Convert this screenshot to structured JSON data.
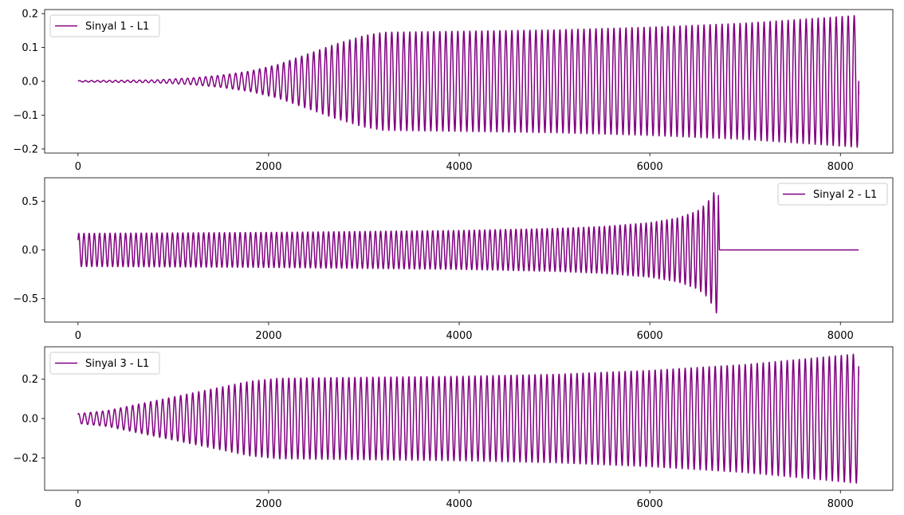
{
  "colors": {
    "line": "#800080",
    "axes": "#000000",
    "background": "#ffffff",
    "legend_border": "#cccccc"
  },
  "chart_data": [
    {
      "type": "line",
      "title": "",
      "xlabel": "",
      "ylabel": "",
      "xlim": [
        -350,
        8550
      ],
      "ylim": [
        -0.212,
        0.212
      ],
      "xticks": [
        0,
        2000,
        4000,
        6000,
        8000
      ],
      "xtick_labels": [
        "0",
        "2000",
        "4000",
        "6000",
        "8000"
      ],
      "yticks": [
        -0.2,
        -0.1,
        0.0,
        0.1,
        0.2
      ],
      "ytick_labels": [
        "−0.2",
        "−0.1",
        "0.0",
        "0.1",
        "0.2"
      ],
      "grid": false,
      "legend_position": "upper-left",
      "series": [
        {
          "name": "Sinyal 1 - L1",
          "color": "#800080",
          "signal": {
            "x_start": 0,
            "x_end": 8192,
            "cycles": 130,
            "start_value": 0.0,
            "end_value": -0.04,
            "envelope": {
              "x": [
                0,
                800,
                1200,
                1500,
                1800,
                2100,
                2400,
                2700,
                3000,
                3200,
                4000,
                5000,
                6000,
                7000,
                8192
              ],
              "y": [
                0.002,
                0.004,
                0.01,
                0.018,
                0.03,
                0.05,
                0.08,
                0.11,
                0.135,
                0.145,
                0.148,
                0.152,
                0.16,
                0.172,
                0.195
              ]
            }
          }
        }
      ]
    },
    {
      "type": "line",
      "title": "",
      "xlabel": "",
      "ylabel": "",
      "xlim": [
        -350,
        8550
      ],
      "ylim": [
        -0.74,
        0.74
      ],
      "xticks": [
        0,
        2000,
        4000,
        6000,
        8000
      ],
      "xtick_labels": [
        "0",
        "2000",
        "4000",
        "6000",
        "8000"
      ],
      "yticks": [
        -0.5,
        0.0,
        0.5
      ],
      "ytick_labels": [
        "−0.5",
        "0.0",
        "0.5"
      ],
      "grid": false,
      "legend_position": "upper-right",
      "series": [
        {
          "name": "Sinyal 2 - L1",
          "color": "#800080",
          "signal": {
            "x_start": 0,
            "x_end": 8192,
            "active_until": 6720,
            "cycles": 150,
            "start_value": 0.1,
            "end_value": 0.0,
            "envelope": {
              "x": [
                0,
                1000,
                2000,
                3000,
                4000,
                5000,
                5500,
                6000,
                6300,
                6500,
                6600,
                6680,
                6720
              ],
              "y": [
                0.17,
                0.175,
                0.18,
                0.19,
                0.2,
                0.22,
                0.24,
                0.28,
                0.33,
                0.4,
                0.48,
                0.6,
                0.7
              ]
            }
          }
        }
      ]
    },
    {
      "type": "line",
      "title": "",
      "xlabel": "",
      "ylabel": "",
      "xlim": [
        -350,
        8550
      ],
      "ylim": [
        -0.365,
        0.365
      ],
      "xticks": [
        0,
        2000,
        4000,
        6000,
        8000
      ],
      "xtick_labels": [
        "0",
        "2000",
        "4000",
        "6000",
        "8000"
      ],
      "yticks": [
        -0.2,
        0.0,
        0.2
      ],
      "ytick_labels": [
        "−0.2",
        "0.0",
        "0.2"
      ],
      "grid": false,
      "legend_position": "upper-left",
      "series": [
        {
          "name": "Sinyal 3 - L1",
          "color": "#800080",
          "signal": {
            "x_start": 0,
            "x_end": 8192,
            "cycles": 130,
            "start_value": 0.02,
            "end_value": 0.22,
            "envelope": {
              "x": [
                0,
                300,
                600,
                900,
                1200,
                1500,
                1800,
                2100,
                3000,
                4000,
                5000,
                6000,
                7000,
                8192
              ],
              "y": [
                0.025,
                0.04,
                0.07,
                0.1,
                0.13,
                0.16,
                0.19,
                0.205,
                0.21,
                0.215,
                0.225,
                0.245,
                0.275,
                0.33
              ]
            }
          }
        }
      ]
    }
  ]
}
